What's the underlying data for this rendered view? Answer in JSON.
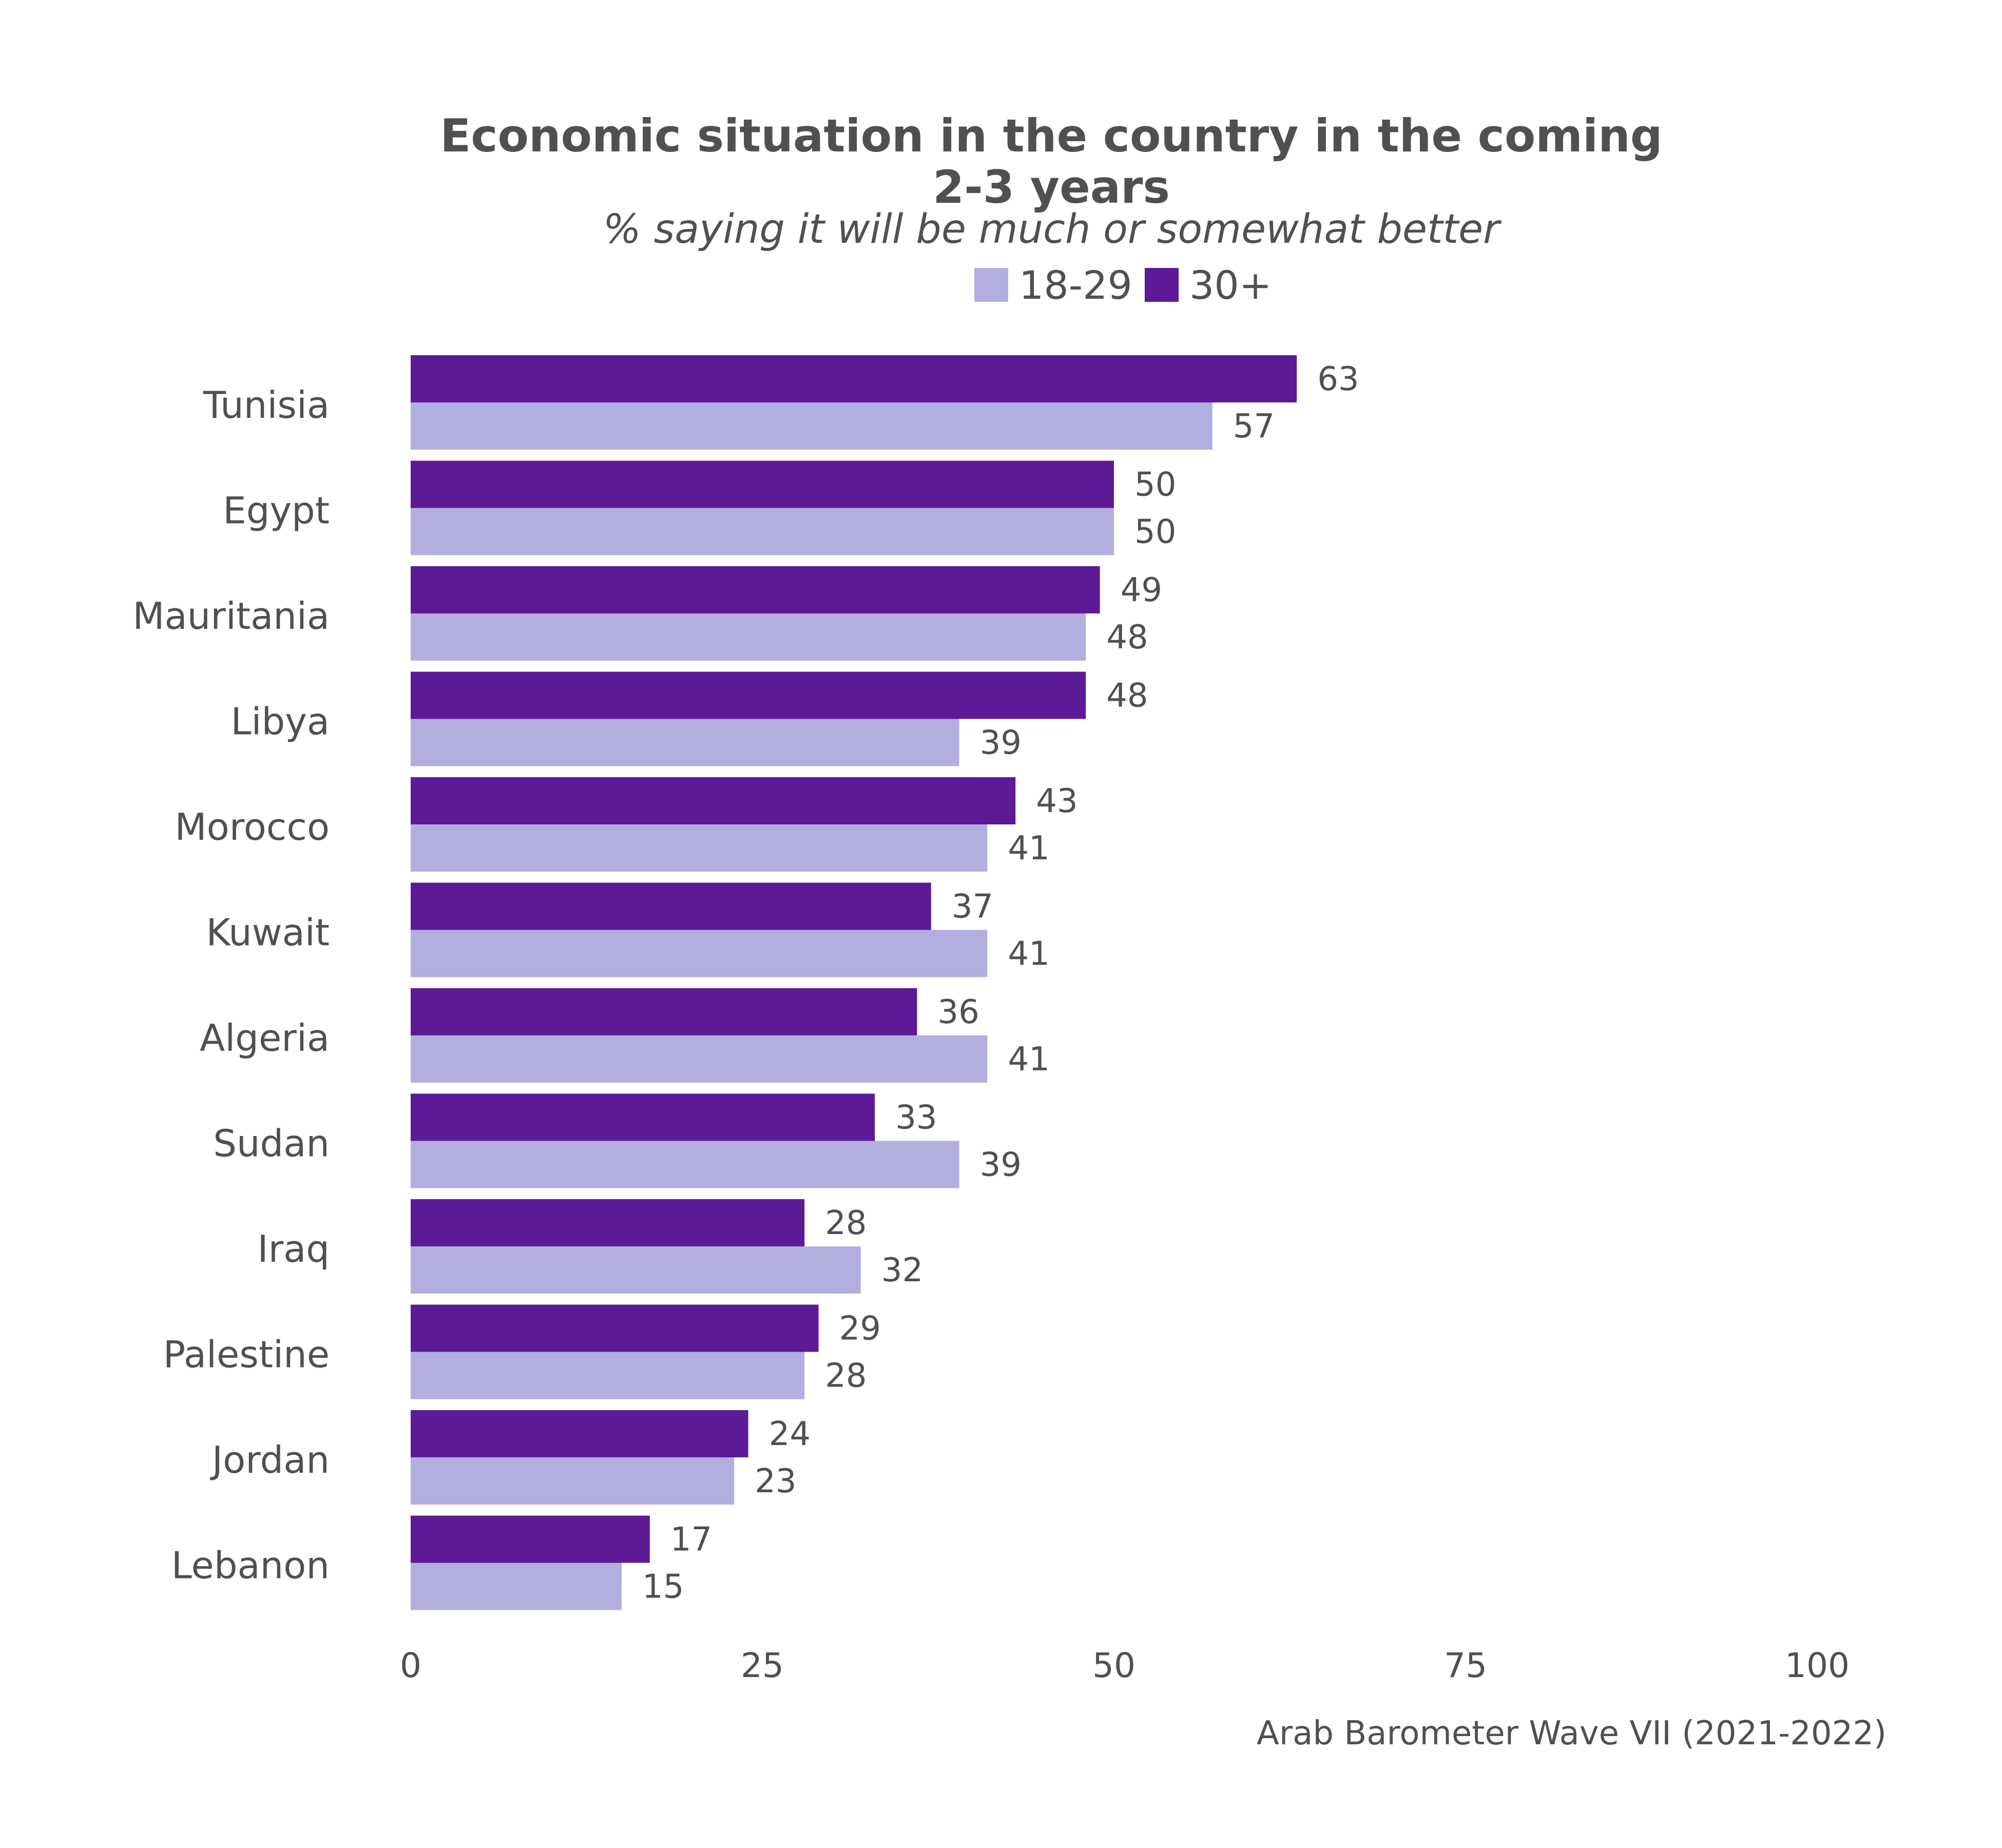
{
  "chart_data": {
    "type": "bar",
    "orientation": "horizontal",
    "title_lines": [
      "Economic situation in the country in the coming",
      "2-3 years"
    ],
    "subtitle": "% saying it will be much or somewhat better",
    "caption": "Arab Barometer Wave VII (2021-2022)",
    "categories": [
      "Tunisia",
      "Egypt",
      "Mauritania",
      "Libya",
      "Morocco",
      "Kuwait",
      "Algeria",
      "Sudan",
      "Iraq",
      "Palestine",
      "Jordan",
      "Lebanon"
    ],
    "series": [
      {
        "name": "30+",
        "color": "#5c1a96",
        "values": [
          63,
          50,
          49,
          48,
          43,
          37,
          36,
          33,
          28,
          29,
          24,
          17
        ]
      },
      {
        "name": "18-29",
        "color": "#b3aee0",
        "values": [
          57,
          50,
          48,
          39,
          41,
          41,
          41,
          39,
          32,
          28,
          23,
          15
        ]
      }
    ],
    "legend_order": [
      "18-29",
      "30+"
    ],
    "legend_position": "top",
    "xlim": [
      0,
      100
    ],
    "xticks": [
      0,
      25,
      50,
      75,
      100
    ],
    "grid": false
  }
}
